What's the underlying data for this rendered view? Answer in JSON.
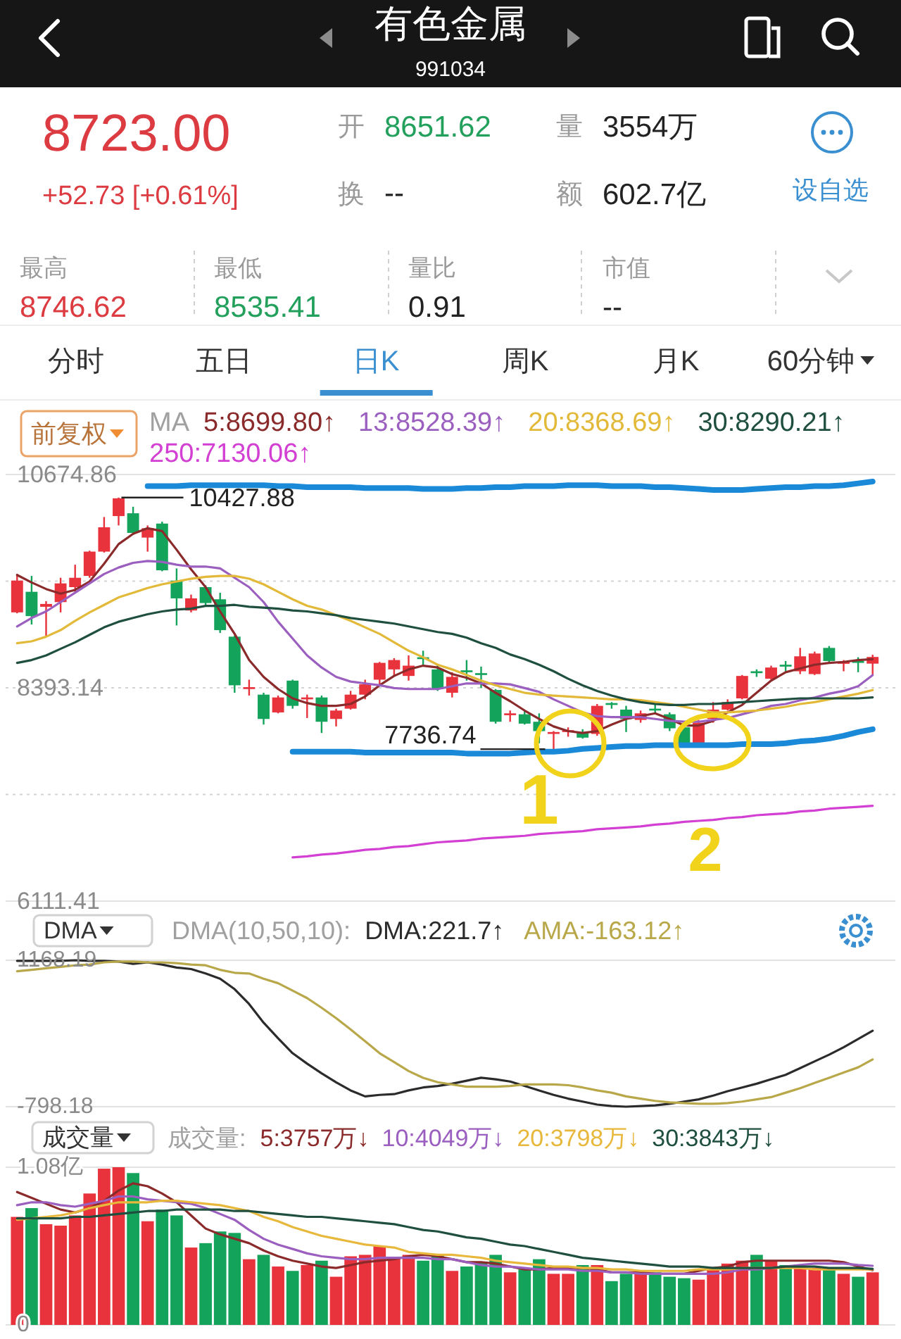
{
  "chart_data": [
    {
      "type": "other",
      "title": "有色金属",
      "subtitle": "991034",
      "annotations": [
        "8723.00",
        "+52.73 [+0.61%]",
        "开",
        "8651.62",
        "量",
        "3554万",
        "换",
        "--",
        "额",
        "602.7亿",
        "设自选",
        "最高",
        "8746.62",
        "最低",
        "8535.41",
        "量比",
        "0.91",
        "市值",
        "--",
        "分时",
        "五日",
        "日K",
        "周K",
        "月K",
        "60分钟"
      ]
    },
    {
      "type": "candlestick",
      "categories": [
        null,
        null,
        null,
        null,
        null,
        null,
        null,
        null,
        null,
        null,
        null,
        null,
        null,
        null,
        null,
        null,
        null,
        null,
        null,
        null,
        null,
        null,
        null,
        null,
        null,
        null,
        null,
        null,
        null,
        null,
        null,
        null,
        null,
        null,
        null,
        null,
        null,
        null,
        null,
        null,
        null,
        null,
        null,
        null,
        null,
        null,
        null,
        null,
        null,
        null,
        null,
        null,
        null,
        null,
        null,
        null,
        null,
        null,
        null,
        null
      ],
      "ohlc": [
        [
          9200,
          9610,
          9190,
          9540
        ],
        [
          9420,
          9590,
          9070,
          9160
        ],
        [
          9260,
          9320,
          8940,
          9290
        ],
        [
          9310,
          9570,
          9200,
          9510
        ],
        [
          9470,
          9710,
          9420,
          9570
        ],
        [
          9590,
          9860,
          9570,
          9850
        ],
        [
          9850,
          10220,
          9840,
          10110
        ],
        [
          10230,
          10427.88,
          10130,
          10420
        ],
        [
          10260,
          10330,
          10030,
          10050
        ],
        [
          10000,
          10130,
          9850,
          10100
        ],
        [
          10150,
          10170,
          9640,
          9650
        ],
        [
          9540,
          9670,
          9060,
          9350
        ],
        [
          9220,
          9390,
          9200,
          9350
        ],
        [
          9470,
          9490,
          9260,
          9300
        ],
        [
          9340,
          9410,
          8980,
          9010
        ],
        [
          8940,
          8950,
          8340,
          8420
        ],
        [
          8380,
          8480,
          8310,
          8400
        ],
        [
          8320,
          8340,
          8000,
          8060
        ],
        [
          8130,
          8310,
          8120,
          8290
        ],
        [
          8470,
          8480,
          8170,
          8200
        ],
        [
          8270,
          8320,
          8070,
          8290
        ],
        [
          8290,
          8310,
          7910,
          8030
        ],
        [
          8060,
          8170,
          7980,
          8150
        ],
        [
          8170,
          8360,
          8160,
          8320
        ],
        [
          8320,
          8480,
          8270,
          8430
        ],
        [
          8480,
          8670,
          8410,
          8660
        ],
        [
          8590,
          8710,
          8520,
          8690
        ],
        [
          8520,
          8740,
          8470,
          8630
        ],
        [
          8720,
          8790,
          8640,
          8700
        ],
        [
          8590,
          8640,
          8360,
          8380
        ],
        [
          8340,
          8560,
          8290,
          8510
        ],
        [
          8580,
          8690,
          8470,
          8560
        ],
        [
          8550,
          8620,
          8390,
          8530
        ],
        [
          8370,
          8380,
          8010,
          8030
        ],
        [
          8100,
          8150,
          8030,
          8120
        ],
        [
          8110,
          8150,
          8000,
          8010
        ],
        [
          8030,
          8120,
          7800,
          7930
        ],
        [
          7900,
          7930,
          7736.74,
          7920
        ],
        [
          7920,
          7970,
          7870,
          7940
        ],
        [
          7910,
          7950,
          7850,
          7860
        ],
        [
          7900,
          8220,
          7880,
          8200
        ],
        [
          8230,
          8240,
          8170,
          8210
        ],
        [
          8160,
          8200,
          7920,
          8060
        ],
        [
          8050,
          8150,
          8020,
          8120
        ],
        [
          8170,
          8230,
          8120,
          8150
        ],
        [
          8110,
          8130,
          7930,
          7960
        ],
        [
          7970,
          8000,
          7780,
          7800
        ],
        [
          7800,
          8050,
          7780,
          8020
        ],
        [
          8060,
          8240,
          8020,
          8160
        ],
        [
          8160,
          8270,
          8150,
          8240
        ],
        [
          8280,
          8530,
          8270,
          8520
        ],
        [
          8570,
          8590,
          8510,
          8550
        ],
        [
          8490,
          8630,
          8480,
          8610
        ],
        [
          8640,
          8680,
          8570,
          8620
        ],
        [
          8570,
          8820,
          8540,
          8730
        ],
        [
          8540,
          8780,
          8530,
          8760
        ],
        [
          8820,
          8840,
          8670,
          8680
        ],
        [
          8650,
          8690,
          8570,
          8670
        ],
        [
          8680,
          8720,
          8560,
          8660
        ],
        [
          8651.62,
          8746.62,
          8535.41,
          8723.0
        ]
      ],
      "colors": [
        "#e8323c",
        "#14a35b",
        "#e8323c",
        "#e8323c",
        "#e8323c",
        "#e8323c",
        "#e8323c",
        "#e8323c",
        "#14a35b",
        "#e8323c",
        "#14a35b",
        "#14a35b",
        "#e8323c",
        "#14a35b",
        "#14a35b",
        "#14a35b",
        "#e8323c",
        "#14a35b",
        "#e8323c",
        "#14a35b",
        "#e8323c",
        "#14a35b",
        "#e8323c",
        "#e8323c",
        "#e8323c",
        "#e8323c",
        "#e8323c",
        "#e8323c",
        "#14a35b",
        "#14a35b",
        "#e8323c",
        "#14a35b",
        "#14a35b",
        "#14a35b",
        "#e8323c",
        "#14a35b",
        "#14a35b",
        "#e8323c",
        "#e8323c",
        "#14a35b",
        "#e8323c",
        "#14a35b",
        "#14a35b",
        "#e8323c",
        "#14a35b",
        "#14a35b",
        "#14a35b",
        "#e8323c",
        "#e8323c",
        "#e8323c",
        "#e8323c",
        "#14a35b",
        "#e8323c",
        "#14a35b",
        "#e8323c",
        "#e8323c",
        "#14a35b",
        "#e8323c",
        "#14a35b",
        "#e8323c"
      ],
      "ylim": [
        6111.41,
        10674.86
      ],
      "yticks": [
        6111.41,
        {
          "value": 7252.28,
          "label": null
        },
        8393.14,
        {
          "value": 9533.99,
          "label": null
        },
        10674.86
      ],
      "grid": "y",
      "legend": "top",
      "legend_title": "MA",
      "series": [
        {
          "type": "line",
          "name": "5:8699.80↑",
          "color": "#8b2a2a",
          "values": [
            9600,
            9520,
            9450,
            9400,
            9440,
            9530,
            9720,
            9930,
            10040,
            10100,
            10070,
            9870,
            9660,
            9470,
            9210,
            8970,
            8690,
            8510,
            8380,
            8280,
            8230,
            8200,
            8200,
            8220,
            8300,
            8420,
            8520,
            8590,
            8630,
            8610,
            8540,
            8500,
            8440,
            8340,
            8250,
            8150,
            8060,
            7980,
            7930,
            7910,
            7930,
            8000,
            8060,
            8090,
            8120,
            8060,
            7990,
            7990,
            8040,
            8130,
            8210,
            8340,
            8470,
            8560,
            8600,
            8640,
            8660,
            8670,
            8690,
            8699.8
          ]
        },
        {
          "type": "line",
          "name": "13:8528.39↑",
          "color": "#9b5fc0",
          "values": [
            9050,
            9140,
            9210,
            9310,
            9410,
            9510,
            9610,
            9680,
            9730,
            9750,
            9740,
            9710,
            9690,
            9690,
            9670,
            9570,
            9470,
            9310,
            9100,
            8920,
            8740,
            8610,
            8510,
            8460,
            8440,
            8420,
            8390,
            8380,
            8380,
            8380,
            8410,
            8440,
            8440,
            8440,
            8430,
            8390,
            8350,
            8270,
            8200,
            8130,
            8090,
            8080,
            8080,
            8080,
            8060,
            8040,
            8030,
            8030,
            8050,
            8070,
            8110,
            8150,
            8200,
            8220,
            8260,
            8290,
            8330,
            8360,
            8410,
            8528.39
          ]
        },
        {
          "type": "line",
          "name": "20:8368.69↑",
          "color": "#e3b93a",
          "values": [
            8870,
            8890,
            8940,
            9010,
            9110,
            9200,
            9280,
            9360,
            9410,
            9460,
            9500,
            9530,
            9560,
            9580,
            9590,
            9590,
            9560,
            9500,
            9420,
            9340,
            9270,
            9230,
            9170,
            9110,
            9040,
            8970,
            8880,
            8790,
            8720,
            8640,
            8590,
            8530,
            8470,
            8420,
            8380,
            8340,
            8320,
            8310,
            8300,
            8290,
            8280,
            8270,
            8270,
            8260,
            8240,
            8220,
            8190,
            8160,
            8130,
            8130,
            8140,
            8150,
            8170,
            8190,
            8220,
            8240,
            8270,
            8300,
            8330,
            8368.69
          ]
        },
        {
          "type": "line",
          "name": "30:8290.21↑",
          "color": "#1f4f3f",
          "values": [
            8660,
            8690,
            8740,
            8810,
            8880,
            8960,
            9040,
            9100,
            9140,
            9180,
            9210,
            9230,
            9240,
            9270,
            9270,
            9280,
            9260,
            9250,
            9240,
            9220,
            9210,
            9190,
            9170,
            9140,
            9120,
            9100,
            9080,
            9050,
            9020,
            8990,
            8970,
            8930,
            8870,
            8820,
            8750,
            8700,
            8640,
            8570,
            8490,
            8420,
            8360,
            8310,
            8270,
            8240,
            8220,
            8210,
            8210,
            8220,
            8220,
            8230,
            8240,
            8250,
            8260,
            8270,
            8280,
            8280,
            8280,
            8280,
            8280,
            8290.21
          ]
        },
        {
          "type": "line",
          "name": "250:7130.06↑",
          "color": "#d23fd2",
          "values": [
            null,
            null,
            null,
            null,
            null,
            null,
            null,
            null,
            null,
            null,
            null,
            null,
            null,
            null,
            null,
            null,
            null,
            null,
            null,
            6580,
            6590,
            6610,
            6620,
            6640,
            6660,
            6670,
            6690,
            6700,
            6720,
            6740,
            6750,
            6760,
            6780,
            6790,
            6800,
            6810,
            6830,
            6840,
            6850,
            6860,
            6880,
            6890,
            6900,
            6910,
            6930,
            6940,
            6960,
            6970,
            6980,
            7000,
            7010,
            7030,
            7040,
            7050,
            7070,
            7080,
            7100,
            7110,
            7120,
            7130.06
          ]
        },
        {
          "type": "line",
          "color": "#1a8ad8",
          "values": [
            null,
            null,
            null,
            null,
            null,
            null,
            null,
            null,
            null,
            10550,
            10550,
            10550,
            10560,
            10560,
            10560,
            10560,
            10560,
            10560,
            10550,
            10550,
            10540,
            10540,
            10540,
            10540,
            10530,
            10530,
            10530,
            10530,
            10520,
            10520,
            10520,
            10530,
            10530,
            10540,
            10540,
            10550,
            10550,
            10550,
            10560,
            10560,
            10560,
            10550,
            10550,
            10550,
            10540,
            10540,
            10530,
            10520,
            10510,
            10510,
            10510,
            10520,
            10530,
            10540,
            10540,
            10550,
            10550,
            10560,
            10580,
            10600
          ]
        },
        {
          "type": "line",
          "color": "#1a8ad8",
          "values": [
            null,
            null,
            null,
            null,
            null,
            null,
            null,
            null,
            null,
            null,
            null,
            null,
            null,
            null,
            null,
            null,
            null,
            null,
            null,
            7710,
            7710,
            7710,
            7710,
            7710,
            7700,
            7700,
            7700,
            7700,
            7700,
            7700,
            7700,
            7690,
            7690,
            7690,
            7690,
            7700,
            7710,
            7710,
            7720,
            7740,
            7750,
            7760,
            7770,
            7770,
            7780,
            7780,
            7780,
            7780,
            7780,
            7780,
            7790,
            7790,
            7790,
            7800,
            7820,
            7830,
            7850,
            7880,
            7920,
            7950
          ]
        }
      ],
      "annotations": [
        "10427.88",
        "7736.74",
        "前复权",
        "1",
        "2"
      ]
    },
    {
      "type": "line",
      "categories": [
        null,
        null,
        null,
        null,
        null,
        null,
        null,
        null,
        null,
        null,
        null,
        null,
        null,
        null,
        null,
        null,
        null,
        null,
        null,
        null,
        null,
        null,
        null,
        null,
        null,
        null,
        null,
        null,
        null,
        null,
        null,
        null,
        null,
        null,
        null,
        null,
        null,
        null,
        null,
        null,
        null,
        null,
        null,
        null,
        null,
        null,
        null,
        null,
        null,
        null,
        null,
        null,
        null,
        null,
        null,
        null,
        null,
        null,
        null,
        null
      ],
      "ylim": [
        -798.18,
        1168.19
      ],
      "yticks": [
        -798.18,
        1168.19
      ],
      "grid": "y",
      "legend": "top",
      "legend_title": "DMA(10,50,10):",
      "series": [
        {
          "name": "DMA:221.7↑",
          "color": "#2b2b2b",
          "values": [
            1160,
            1160,
            1160,
            1160,
            1168.19,
            1160,
            1160,
            1150,
            1120,
            1140,
            1110,
            1070,
            1050,
            990,
            920,
            780,
            580,
            330,
            120,
            -80,
            -220,
            -350,
            -470,
            -580,
            -660,
            -640,
            -630,
            -580,
            -540,
            -520,
            -490,
            -450,
            -410,
            -430,
            -460,
            -520,
            -580,
            -640,
            -690,
            -730,
            -770,
            -790,
            -798.18,
            -790,
            -780,
            -760,
            -730,
            -700,
            -650,
            -590,
            -540,
            -490,
            -430,
            -370,
            -280,
            -190,
            -100,
            0,
            110,
            221.7
          ]
        },
        {
          "name": "AMA:-163.12↑",
          "color": "#b8a84a",
          "values": [
            1020,
            1040,
            1060,
            1080,
            1100,
            1110,
            1140,
            1150,
            1150,
            1140,
            1140,
            1130,
            1110,
            1100,
            1040,
            1000,
            990,
            920,
            860,
            760,
            660,
            530,
            390,
            240,
            80,
            -80,
            -200,
            -320,
            -410,
            -470,
            -500,
            -530,
            -530,
            -530,
            -520,
            -500,
            -500,
            -500,
            -510,
            -540,
            -580,
            -610,
            -660,
            -690,
            -720,
            -740,
            -750,
            -760,
            -760,
            -750,
            -730,
            -700,
            -670,
            -610,
            -550,
            -480,
            -410,
            -340,
            -270,
            -163.12
          ]
        }
      ],
      "annotations": [
        "DMA"
      ]
    },
    {
      "type": "bar",
      "categories": [
        null,
        null,
        null,
        null,
        null,
        null,
        null,
        null,
        null,
        null,
        null,
        null,
        null,
        null,
        null,
        null,
        null,
        null,
        null,
        null,
        null,
        null,
        null,
        null,
        null,
        null,
        null,
        null,
        null,
        null,
        null,
        null,
        null,
        null,
        null,
        null,
        null,
        null,
        null,
        null,
        null,
        null,
        null,
        null,
        null,
        null,
        null,
        null,
        null,
        null,
        null,
        null,
        null,
        null,
        null,
        null,
        null,
        null,
        null,
        null
      ],
      "ylim": [
        0,
        1.08
      ],
      "yticks": [
        0,
        {
          "value": 1.08,
          "label": "1.08亿"
        }
      ],
      "grid": "y",
      "legend": "top",
      "legend_title": "成交量:",
      "series": [
        {
          "type": "bar",
          "values": [
            0.74,
            0.8,
            0.69,
            0.68,
            0.75,
            0.9,
            1.07,
            1.08,
            1.04,
            0.71,
            0.79,
            0.75,
            0.53,
            0.56,
            0.64,
            0.63,
            0.45,
            0.48,
            0.4,
            0.37,
            0.41,
            0.44,
            0.33,
            0.47,
            0.48,
            0.54,
            0.46,
            0.48,
            0.44,
            0.48,
            0.37,
            0.4,
            0.43,
            0.48,
            0.36,
            0.38,
            0.45,
            0.35,
            0.35,
            0.41,
            0.41,
            0.3,
            0.35,
            0.36,
            0.36,
            0.33,
            0.32,
            0.31,
            0.39,
            0.42,
            0.44,
            0.48,
            0.44,
            0.41,
            0.39,
            0.39,
            0.39,
            0.35,
            0.33,
            0.36
          ],
          "colors": [
            "#e8323c",
            "#14a35b",
            "#e8323c",
            "#e8323c",
            "#e8323c",
            "#e8323c",
            "#e8323c",
            "#e8323c",
            "#14a35b",
            "#e8323c",
            "#14a35b",
            "#14a35b",
            "#e8323c",
            "#14a35b",
            "#14a35b",
            "#14a35b",
            "#e8323c",
            "#14a35b",
            "#e8323c",
            "#14a35b",
            "#e8323c",
            "#14a35b",
            "#e8323c",
            "#e8323c",
            "#e8323c",
            "#e8323c",
            "#e8323c",
            "#e8323c",
            "#14a35b",
            "#14a35b",
            "#e8323c",
            "#14a35b",
            "#14a35b",
            "#14a35b",
            "#e8323c",
            "#14a35b",
            "#14a35b",
            "#e8323c",
            "#e8323c",
            "#14a35b",
            "#e8323c",
            "#14a35b",
            "#14a35b",
            "#e8323c",
            "#14a35b",
            "#14a35b",
            "#14a35b",
            "#e8323c",
            "#e8323c",
            "#e8323c",
            "#e8323c",
            "#14a35b",
            "#e8323c",
            "#14a35b",
            "#e8323c",
            "#e8323c",
            "#14a35b",
            "#e8323c",
            "#14a35b",
            "#e8323c"
          ]
        },
        {
          "type": "line",
          "name": "5:3757万↓",
          "color": "#8b2a2a",
          "values": [
            0.91,
            0.87,
            0.83,
            0.79,
            0.77,
            0.8,
            0.85,
            0.92,
            0.97,
            0.95,
            0.9,
            0.84,
            0.75,
            0.66,
            0.62,
            0.59,
            0.56,
            0.51,
            0.47,
            0.44,
            0.42,
            0.4,
            0.39,
            0.41,
            0.43,
            0.44,
            0.45,
            0.47,
            0.48,
            0.47,
            0.45,
            0.43,
            0.43,
            0.42,
            0.4,
            0.38,
            0.38,
            0.39,
            0.39,
            0.39,
            0.38,
            0.36,
            0.36,
            0.36,
            0.35,
            0.35,
            0.35,
            0.37,
            0.39,
            0.4,
            0.43,
            0.44,
            0.44,
            0.44,
            0.44,
            0.44,
            0.44,
            0.43,
            0.4,
            0.3757
          ]
        },
        {
          "type": "line",
          "name": "10:4049万↓",
          "color": "#9b5fc0",
          "values": [
            0.82,
            0.84,
            0.84,
            0.82,
            0.81,
            0.83,
            0.85,
            0.88,
            0.88,
            0.86,
            0.85,
            0.84,
            0.83,
            0.8,
            0.76,
            0.72,
            0.65,
            0.59,
            0.55,
            0.52,
            0.49,
            0.47,
            0.46,
            0.45,
            0.45,
            0.46,
            0.46,
            0.46,
            0.46,
            0.45,
            0.45,
            0.43,
            0.41,
            0.4,
            0.4,
            0.39,
            0.38,
            0.38,
            0.38,
            0.37,
            0.37,
            0.36,
            0.36,
            0.35,
            0.35,
            0.35,
            0.35,
            0.35,
            0.35,
            0.36,
            0.38,
            0.38,
            0.39,
            0.4,
            0.41,
            0.42,
            0.42,
            0.42,
            0.41,
            0.4049
          ]
        },
        {
          "type": "line",
          "name": "20:3798万↓",
          "color": "#e8b83c",
          "values": [
            0.72,
            0.73,
            0.74,
            0.75,
            0.77,
            0.8,
            0.82,
            0.84,
            0.84,
            0.84,
            0.85,
            0.85,
            0.84,
            0.83,
            0.82,
            0.8,
            0.78,
            0.74,
            0.71,
            0.67,
            0.64,
            0.61,
            0.59,
            0.57,
            0.55,
            0.54,
            0.53,
            0.5,
            0.49,
            0.48,
            0.48,
            0.47,
            0.46,
            0.44,
            0.43,
            0.42,
            0.41,
            0.4,
            0.4,
            0.39,
            0.39,
            0.38,
            0.38,
            0.37,
            0.37,
            0.37,
            0.37,
            0.38,
            0.38,
            0.38,
            0.39,
            0.39,
            0.39,
            0.39,
            0.39,
            0.38,
            0.38,
            0.38,
            0.38,
            0.3798
          ]
        },
        {
          "type": "line",
          "name": "30:3843万↓",
          "color": "#1f4f3f",
          "values": [
            0.73,
            0.73,
            0.73,
            0.73,
            0.74,
            0.74,
            0.75,
            0.76,
            0.77,
            0.78,
            0.78,
            0.79,
            0.79,
            0.79,
            0.79,
            0.78,
            0.78,
            0.77,
            0.76,
            0.75,
            0.74,
            0.74,
            0.73,
            0.72,
            0.71,
            0.7,
            0.69,
            0.67,
            0.65,
            0.64,
            0.62,
            0.6,
            0.59,
            0.57,
            0.55,
            0.54,
            0.52,
            0.5,
            0.48,
            0.46,
            0.45,
            0.44,
            0.43,
            0.42,
            0.41,
            0.4,
            0.4,
            0.4,
            0.39,
            0.39,
            0.39,
            0.39,
            0.39,
            0.4,
            0.4,
            0.4,
            0.39,
            0.39,
            0.39,
            0.3843
          ]
        }
      ],
      "annotations": [
        "成交量"
      ]
    }
  ]
}
